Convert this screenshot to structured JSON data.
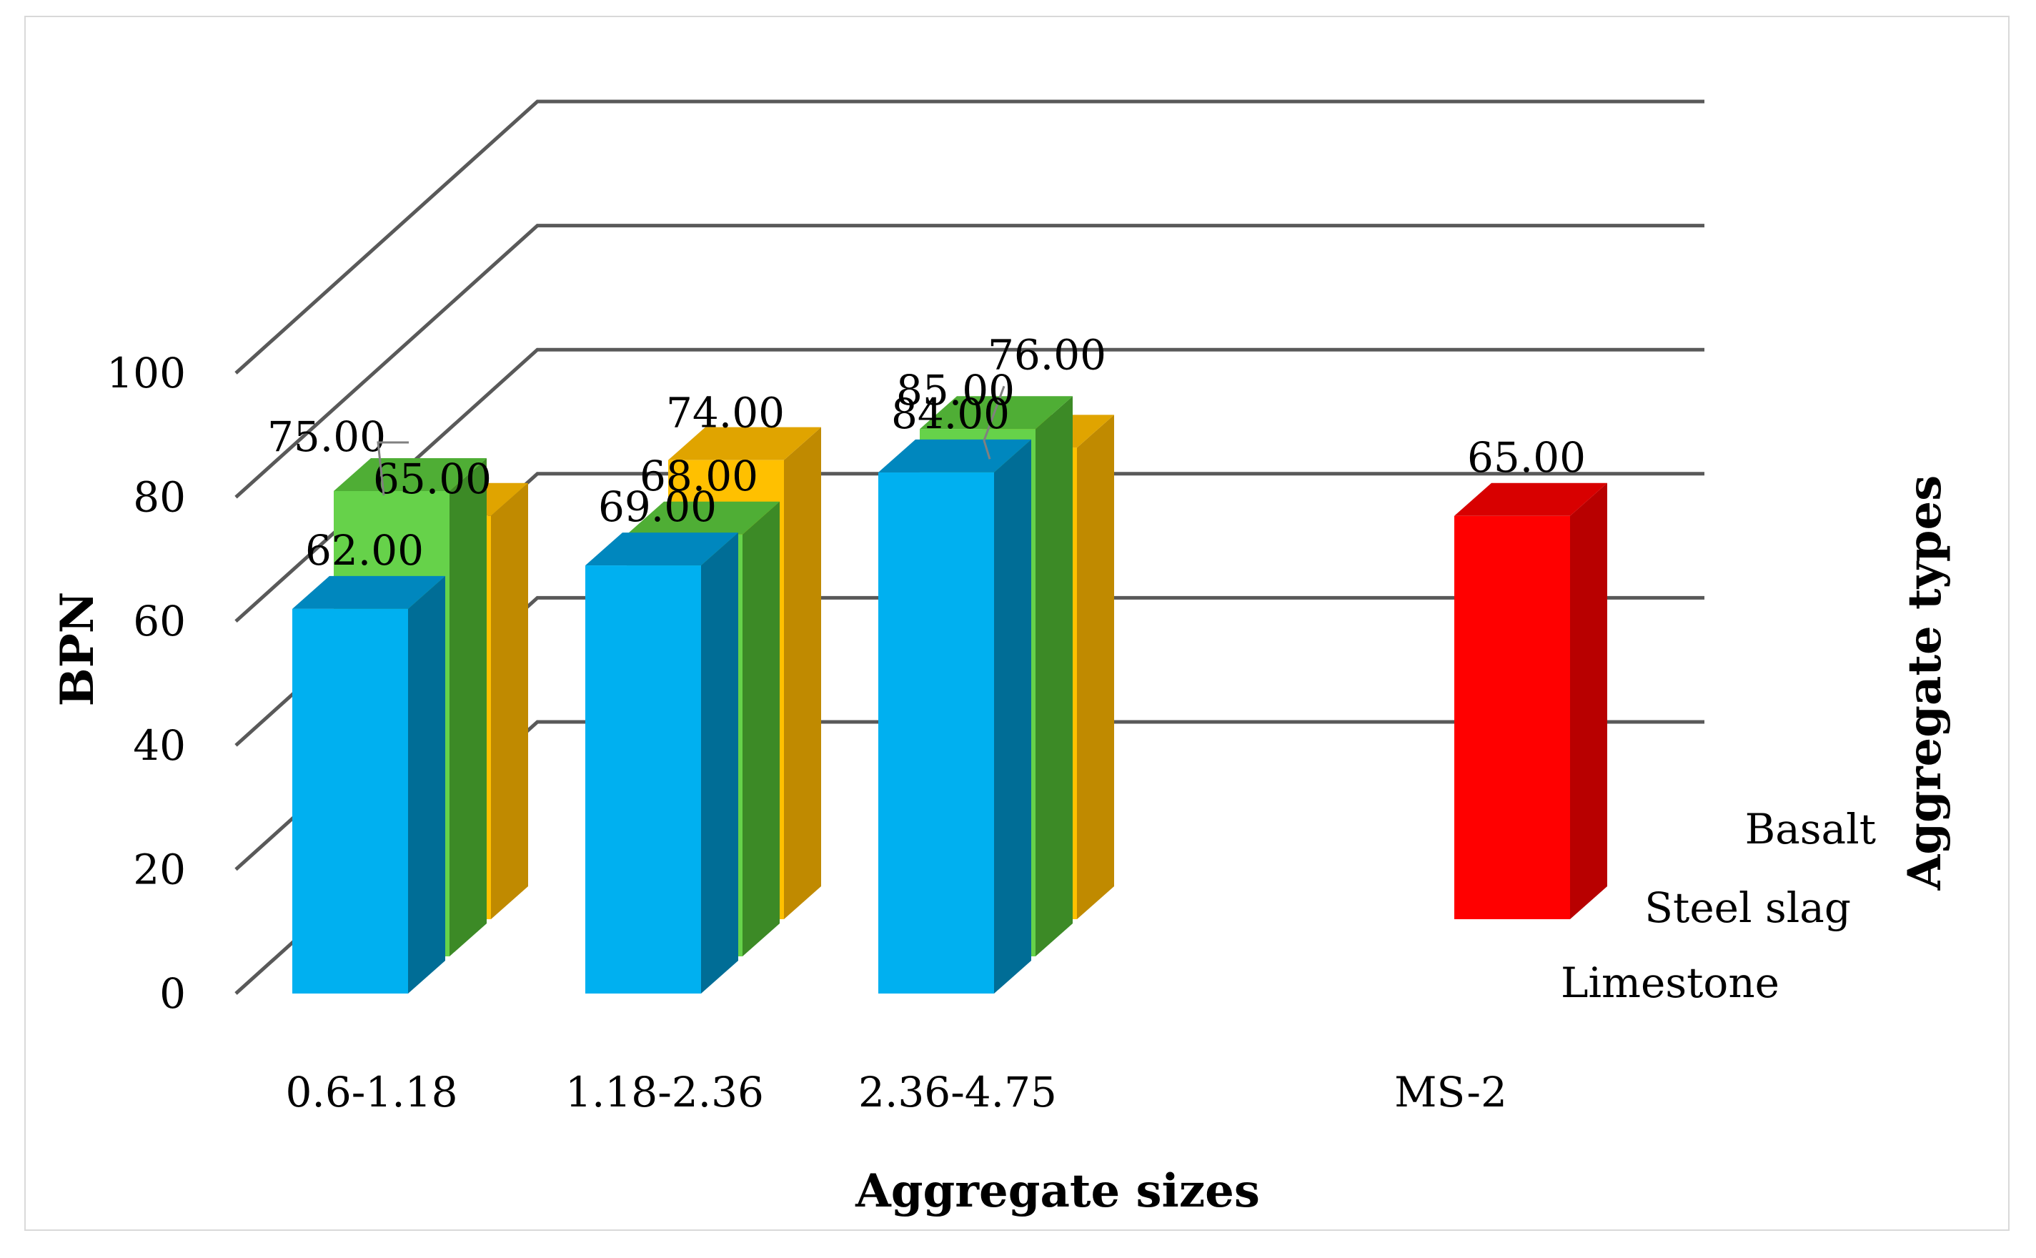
{
  "chart_data": {
    "type": "bar",
    "subtype": "3d-column",
    "title": "",
    "xlabel": "Aggregate sizes",
    "ylabel": "BPN",
    "zlabel": "Aggregate types",
    "ylim": [
      0,
      100
    ],
    "yticks": [
      0,
      20,
      40,
      60,
      80,
      100
    ],
    "categories": [
      "0.6-1.18",
      "1.18-2.36",
      "2.36-4.75",
      "MS-2"
    ],
    "series": [
      {
        "name": "Limestone",
        "values": [
          62,
          69,
          84,
          null
        ],
        "labels": [
          "62.00",
          "69.00",
          "84.00",
          null
        ]
      },
      {
        "name": "Steel slag",
        "values": [
          75,
          68,
          85,
          null
        ],
        "labels": [
          "75.00",
          "68.00",
          "85.00",
          null
        ]
      },
      {
        "name": "Basalt",
        "values": [
          65,
          74,
          76,
          65
        ],
        "labels": [
          "65.00",
          "74.00",
          "76.00",
          "65.00"
        ]
      }
    ],
    "colors": {
      "Limestone": {
        "front": "#00b0f0",
        "side": "#006d96",
        "top": "#0087be"
      },
      "Steel slag": {
        "front": "#66d24a",
        "side": "#3c8a26",
        "top": "#4fae35"
      },
      "Basalt": {
        "front": "#ffc000",
        "side": "#c08a00",
        "top": "#e0a400"
      },
      "Basalt-MS-2": {
        "front": "#ff0000",
        "side": "#b80000",
        "top": "#d80000"
      },
      "gridline": "#595959"
    }
  }
}
